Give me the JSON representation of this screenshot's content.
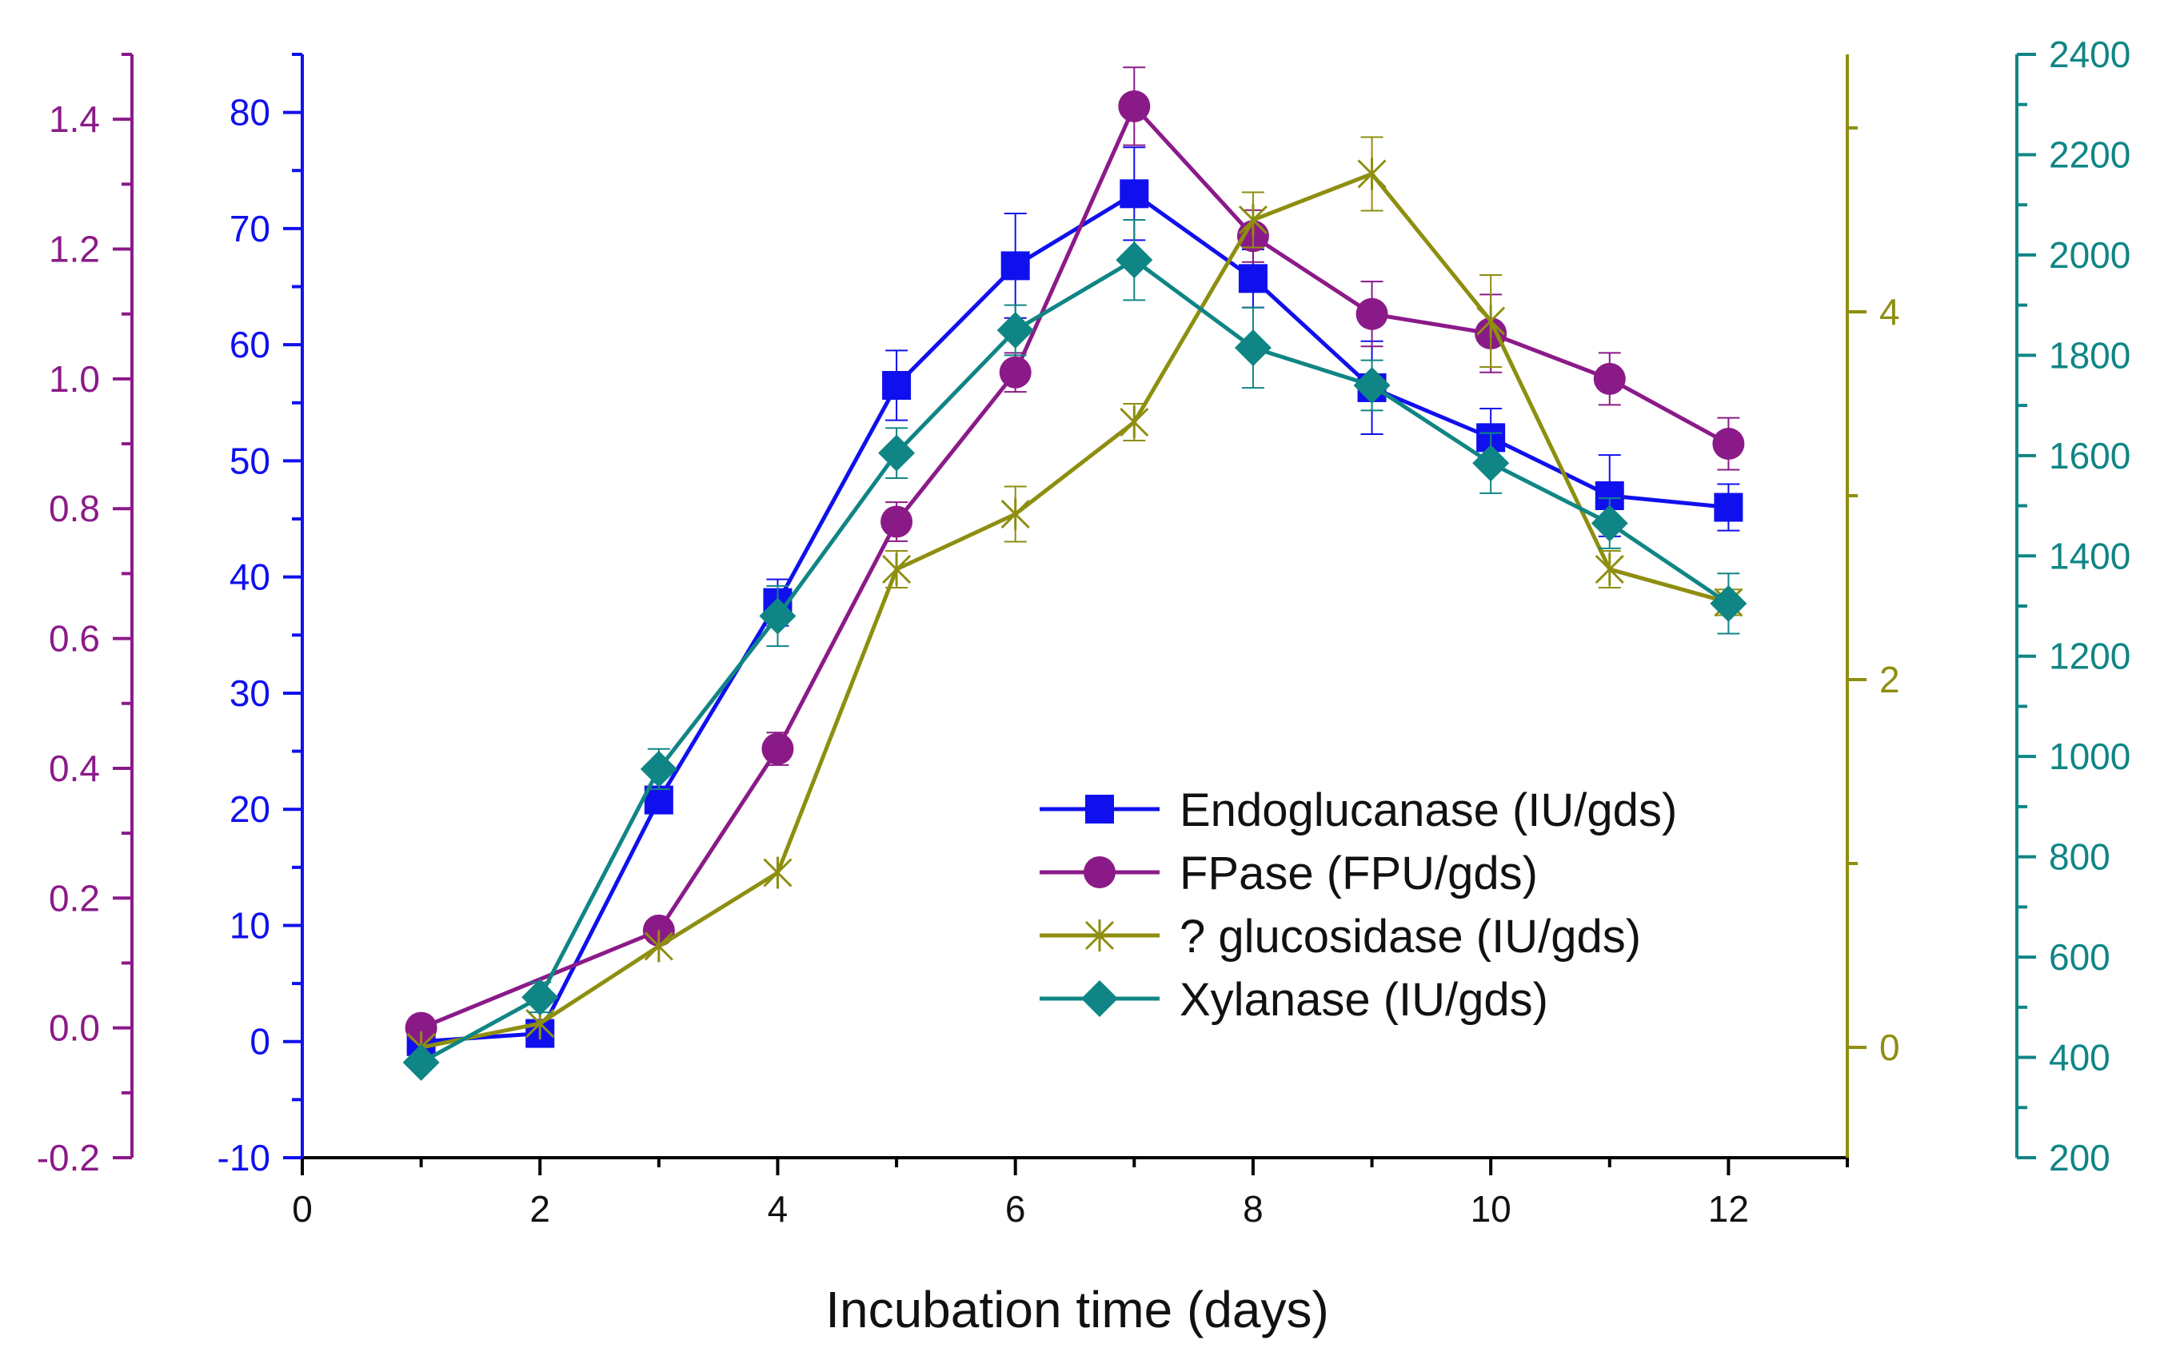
{
  "chart_data": {
    "type": "line",
    "xlabel": "Incubation time (days)",
    "x_axis": {
      "min": 0,
      "max": 13,
      "ticks": [
        "0",
        "2",
        "4",
        "6",
        "8",
        "10",
        "12"
      ]
    },
    "y_axes": {
      "fpase": {
        "color": "#8B1A89",
        "min": -0.2,
        "max": 1.5,
        "ticks": [
          "-0.2",
          "0.0",
          "0.2",
          "0.4",
          "0.6",
          "0.8",
          "1.0",
          "1.2",
          "1.4"
        ]
      },
      "endo": {
        "color": "#1010EE",
        "min": -10,
        "max": 85,
        "ticks": [
          "-10",
          "0",
          "10",
          "20",
          "30",
          "40",
          "50",
          "60",
          "70",
          "80"
        ]
      },
      "glucosidase": {
        "color": "#8E8E10",
        "min": -0.6,
        "max": 5.4,
        "ticks": [
          "0",
          "2",
          "4"
        ]
      },
      "xylanase": {
        "color": "#108585",
        "min": 200,
        "max": 2400,
        "ticks": [
          "200",
          "400",
          "600",
          "800",
          "1000",
          "1200",
          "1400",
          "1600",
          "1800",
          "2000",
          "2200",
          "2400"
        ]
      }
    },
    "series": [
      {
        "name": "Endoglucanase (IU/gds)",
        "axis": "endo",
        "marker": "square",
        "color": "#1010EE",
        "x": [
          1,
          2,
          3,
          4,
          5,
          6,
          7,
          8,
          9,
          10,
          11,
          12
        ],
        "values": [
          0,
          0.7,
          20.8,
          37.8,
          56.5,
          66.8,
          73,
          65.7,
          56.3,
          52,
          47,
          46
        ],
        "errors": [
          0.5,
          0.6,
          1.0,
          2.0,
          3.0,
          4.5,
          4.0,
          2.5,
          4.0,
          2.5,
          3.5,
          2.0
        ]
      },
      {
        "name": "FPase (FPU/gds)",
        "axis": "fpase",
        "marker": "circle",
        "color": "#8B1A89",
        "x": [
          1,
          2,
          3,
          4,
          5,
          6,
          7,
          8,
          9,
          10,
          11,
          12
        ],
        "values": [
          0.0,
          null,
          0.15,
          0.43,
          0.78,
          1.01,
          1.42,
          1.22,
          1.1,
          1.07,
          1.0,
          0.9
        ],
        "errors": [
          0.0,
          null,
          0.0,
          0.025,
          0.03,
          0.03,
          0.06,
          0.04,
          0.05,
          0.06,
          0.04,
          0.04
        ]
      },
      {
        "name": "? glucosidase (IU/gds)",
        "axis": "glucosidase",
        "marker": "asterisk",
        "color": "#8E8E10",
        "x": [
          1,
          2,
          3,
          4,
          5,
          6,
          7,
          8,
          9,
          10,
          11,
          12
        ],
        "values": [
          0.0,
          0.13,
          0.55,
          0.95,
          2.6,
          2.9,
          3.4,
          4.5,
          4.75,
          3.95,
          2.6,
          2.42
        ],
        "errors": [
          0.0,
          0.0,
          0.0,
          0.0,
          0.1,
          0.15,
          0.1,
          0.15,
          0.2,
          0.25,
          0.1,
          0.07
        ]
      },
      {
        "name": "Xylanase (IU/gds)",
        "axis": "xylanase",
        "marker": "diamond",
        "color": "#108585",
        "x": [
          1,
          2,
          3,
          4,
          5,
          6,
          7,
          8,
          9,
          10,
          11,
          12
        ],
        "values": [
          390,
          520,
          975,
          1280,
          1605,
          1850,
          1990,
          1815,
          1740,
          1585,
          1465,
          1305
        ],
        "errors": [
          0,
          30,
          40,
          60,
          50,
          50,
          80,
          80,
          50,
          60,
          50,
          60
        ]
      }
    ],
    "legend_position": "lower-right",
    "grid": false
  }
}
